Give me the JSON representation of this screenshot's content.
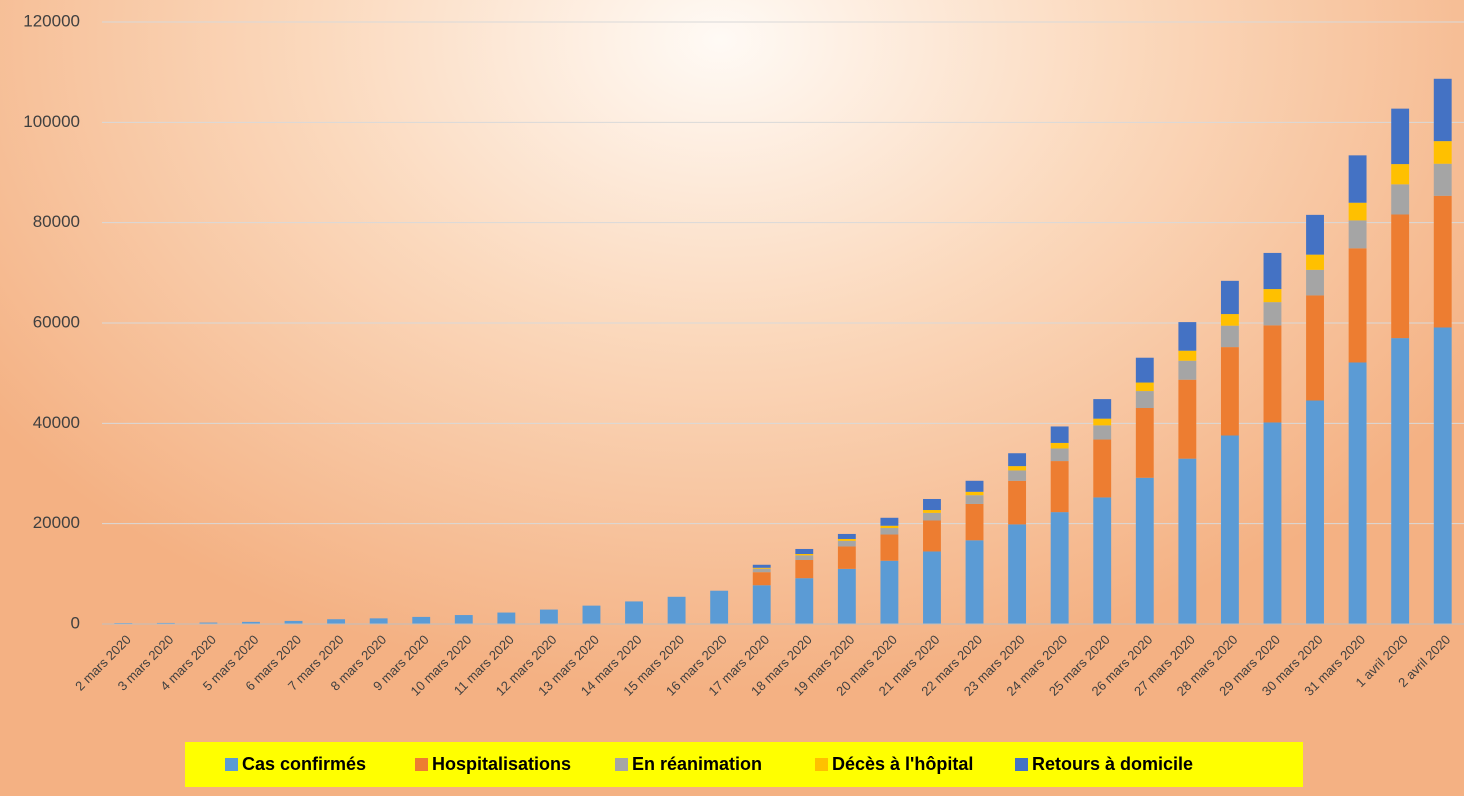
{
  "chart_data": {
    "type": "stacked_bar",
    "categories": [
      "2 mars 2020",
      "3 mars 2020",
      "4 mars 2020",
      "5 mars 2020",
      "6 mars 2020",
      "7 mars 2020",
      "8 mars 2020",
      "9 mars 2020",
      "10 mars 2020",
      "11 mars 2020",
      "12 mars 2020",
      "13 mars 2020",
      "14 mars 2020",
      "15 mars 2020",
      "16 mars 2020",
      "17 mars 2020",
      "18 mars 2020",
      "19 mars 2020",
      "20 mars 2020",
      "21 mars 2020",
      "22 mars 2020",
      "23 mars 2020",
      "24 mars 2020",
      "25 mars 2020",
      "26 mars 2020",
      "27 mars 2020",
      "28 mars 2020",
      "29 mars 2020",
      "30 mars 2020",
      "31 mars 2020",
      "1 avril 2020",
      "2 avril 2020"
    ],
    "series": [
      {
        "name": "Cas confirmés",
        "color": "#5b9bd5",
        "values": [
          191,
          212,
          285,
          423,
          613,
          949,
          1126,
          1412,
          1784,
          2281,
          2876,
          3661,
          4499,
          5423,
          6633,
          7730,
          9134,
          10995,
          12612,
          14459,
          16689,
          19856,
          22302,
          25233,
          29155,
          32964,
          37575,
          40174,
          44550,
          52128,
          56989,
          59105
        ]
      },
      {
        "name": "Hospitalisations",
        "color": "#ed7d31",
        "values": [
          0,
          0,
          0,
          0,
          0,
          0,
          0,
          0,
          0,
          0,
          0,
          0,
          0,
          0,
          0,
          2600,
          3626,
          4461,
          5226,
          6172,
          7240,
          8673,
          10176,
          11539,
          13904,
          15732,
          17620,
          19354,
          20946,
          22757,
          24639,
          26246
        ]
      },
      {
        "name": "En réanimation",
        "color": "#a5a5a5",
        "values": [
          0,
          0,
          0,
          0,
          0,
          0,
          0,
          0,
          0,
          0,
          0,
          0,
          0,
          0,
          0,
          700,
          931,
          1122,
          1297,
          1525,
          1746,
          2082,
          2516,
          2827,
          3375,
          3787,
          4273,
          4632,
          5107,
          5565,
          6017,
          6399
        ]
      },
      {
        "name": "Décès à l'hôpital",
        "color": "#ffc000",
        "values": [
          0,
          0,
          0,
          0,
          0,
          0,
          0,
          0,
          0,
          0,
          0,
          0,
          0,
          0,
          0,
          175,
          264,
          372,
          450,
          562,
          674,
          860,
          1100,
          1331,
          1696,
          1995,
          2314,
          2606,
          3024,
          3523,
          4032,
          4503
        ]
      },
      {
        "name": "Retours à domicile",
        "color": "#4472c4",
        "values": [
          0,
          0,
          0,
          0,
          0,
          0,
          0,
          0,
          0,
          0,
          0,
          0,
          0,
          0,
          0,
          602,
          1000,
          1000,
          1587,
          2200,
          2200,
          2567,
          3281,
          3900,
          4948,
          5700,
          6624,
          7202,
          7927,
          9444,
          11053,
          12428
        ]
      }
    ],
    "ylim": [
      0,
      120000
    ],
    "yticks": [
      0,
      20000,
      40000,
      60000,
      80000,
      100000,
      120000
    ],
    "grid": true,
    "legend": "bottom"
  }
}
